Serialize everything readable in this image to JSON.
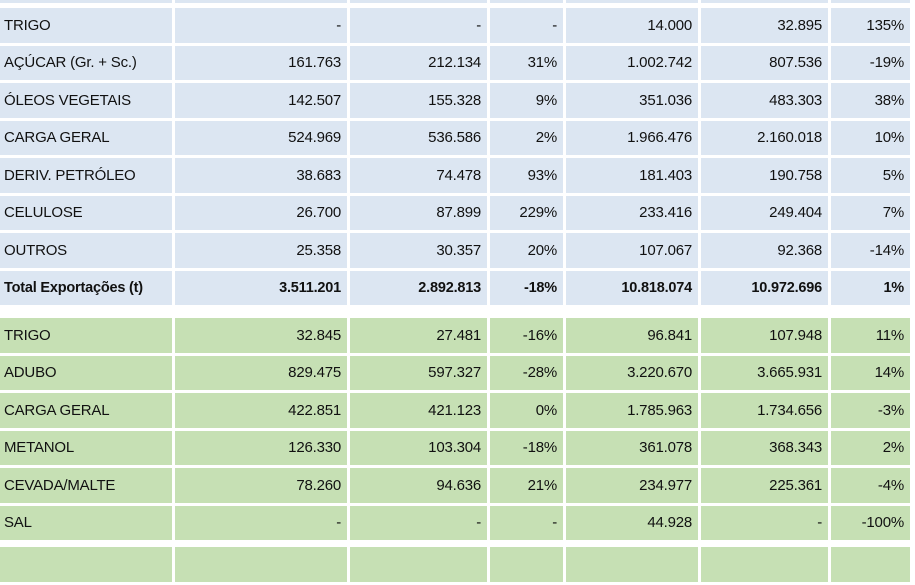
{
  "colors": {
    "export_bg": "#dce6f2",
    "import_bg": "#c6e0b4"
  },
  "exports": [
    {
      "label": "TRIGO",
      "c1": "-",
      "c2": "-",
      "c3": "-",
      "c4": "14.000",
      "c5": "32.895",
      "c6": "135%"
    },
    {
      "label": "AÇÚCAR (Gr. + Sc.)",
      "c1": "161.763",
      "c2": "212.134",
      "c3": "31%",
      "c4": "1.002.742",
      "c5": "807.536",
      "c6": "-19%"
    },
    {
      "label": "ÓLEOS VEGETAIS",
      "c1": "142.507",
      "c2": "155.328",
      "c3": "9%",
      "c4": "351.036",
      "c5": "483.303",
      "c6": "38%"
    },
    {
      "label": "CARGA GERAL",
      "c1": "524.969",
      "c2": "536.586",
      "c3": "2%",
      "c4": "1.966.476",
      "c5": "2.160.018",
      "c6": "10%"
    },
    {
      "label": "DERIV. PETRÓLEO",
      "c1": "38.683",
      "c2": "74.478",
      "c3": "93%",
      "c4": "181.403",
      "c5": "190.758",
      "c6": "5%"
    },
    {
      "label": "CELULOSE",
      "c1": "26.700",
      "c2": "87.899",
      "c3": "229%",
      "c4": "233.416",
      "c5": "249.404",
      "c6": "7%"
    },
    {
      "label": "OUTROS",
      "c1": "25.358",
      "c2": "30.357",
      "c3": "20%",
      "c4": "107.067",
      "c5": "92.368",
      "c6": "-14%"
    },
    {
      "label": "Total Exportações (t)",
      "c1": "3.511.201",
      "c2": "2.892.813",
      "c3": "-18%",
      "c4": "10.818.074",
      "c5": "10.972.696",
      "c6": "1%"
    }
  ],
  "imports": [
    {
      "label": "TRIGO",
      "c1": "32.845",
      "c2": "27.481",
      "c3": "-16%",
      "c4": "96.841",
      "c5": "107.948",
      "c6": "11%"
    },
    {
      "label": "ADUBO",
      "c1": "829.475",
      "c2": "597.327",
      "c3": "-28%",
      "c4": "3.220.670",
      "c5": "3.665.931",
      "c6": "14%"
    },
    {
      "label": "CARGA GERAL",
      "c1": "422.851",
      "c2": "421.123",
      "c3": "0%",
      "c4": "1.785.963",
      "c5": "1.734.656",
      "c6": "-3%"
    },
    {
      "label": "METANOL",
      "c1": "126.330",
      "c2": "103.304",
      "c3": "-18%",
      "c4": "361.078",
      "c5": "368.343",
      "c6": "2%"
    },
    {
      "label": "CEVADA/MALTE",
      "c1": "78.260",
      "c2": "94.636",
      "c3": "21%",
      "c4": "234.977",
      "c5": "225.361",
      "c6": "-4%"
    },
    {
      "label": "SAL",
      "c1": "-",
      "c2": "-",
      "c3": "-",
      "c4": "44.928",
      "c5": "-",
      "c6": "-100%"
    }
  ]
}
